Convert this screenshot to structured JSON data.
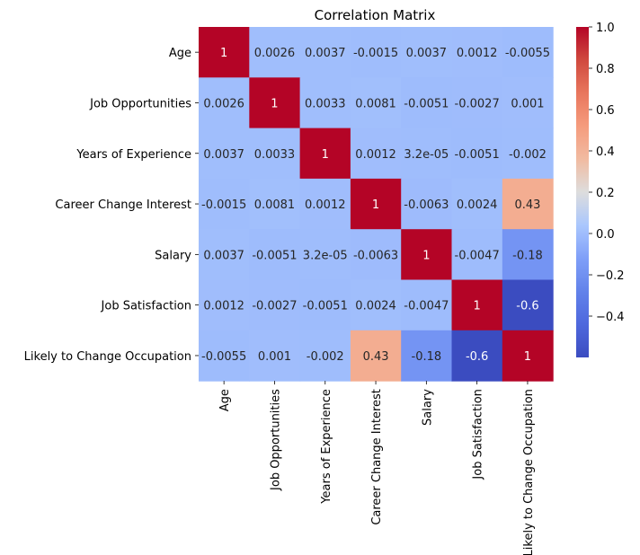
{
  "chart_data": {
    "type": "heatmap",
    "title": "Correlation Matrix",
    "variables": [
      "Age",
      "Job Opportunities",
      "Years of Experience",
      "Career Change Interest",
      "Salary",
      "Job Satisfaction",
      "Likely to Change Occupation"
    ],
    "values": [
      [
        1,
        0.0026,
        0.0037,
        -0.0015,
        0.0037,
        0.0012,
        -0.0055
      ],
      [
        0.0026,
        1,
        0.0033,
        0.0081,
        -0.0051,
        -0.0027,
        0.001
      ],
      [
        0.0037,
        0.0033,
        1,
        0.0012,
        3.2e-05,
        -0.0051,
        -0.002
      ],
      [
        -0.0015,
        0.0081,
        0.0012,
        1,
        -0.0063,
        0.0024,
        0.43
      ],
      [
        0.0037,
        -0.0051,
        3.2e-05,
        -0.0063,
        1,
        -0.0047,
        -0.18
      ],
      [
        0.0012,
        -0.0027,
        -0.0051,
        0.0024,
        -0.0047,
        1,
        -0.6
      ],
      [
        -0.0055,
        0.001,
        -0.002,
        0.43,
        -0.18,
        -0.6,
        1
      ]
    ],
    "annotations": [
      [
        "1",
        "0.0026",
        "0.0037",
        "-0.0015",
        "0.0037",
        "0.0012",
        "-0.0055"
      ],
      [
        "0.0026",
        "1",
        "0.0033",
        "0.0081",
        "-0.0051",
        "-0.0027",
        "0.001"
      ],
      [
        "0.0037",
        "0.0033",
        "1",
        "0.0012",
        "3.2e-05",
        "-0.0051",
        "-0.002"
      ],
      [
        "-0.0015",
        "0.0081",
        "0.0012",
        "1",
        "-0.0063",
        "0.0024",
        "0.43"
      ],
      [
        "0.0037",
        "-0.0051",
        "3.2e-05",
        "-0.0063",
        "1",
        "-0.0047",
        "-0.18"
      ],
      [
        "0.0012",
        "-0.0027",
        "-0.0051",
        "0.0024",
        "-0.0047",
        "1",
        "-0.6"
      ],
      [
        "-0.0055",
        "0.001",
        "-0.002",
        "0.43",
        "-0.18",
        "-0.6",
        "1"
      ]
    ],
    "colormap": "coolwarm",
    "colorbar": {
      "range": [
        -0.6,
        1.0
      ],
      "ticks": [
        -0.4,
        -0.2,
        0.0,
        0.2,
        0.4,
        0.6,
        0.8,
        1.0
      ],
      "tick_labels": [
        "−0.4",
        "−0.2",
        "0.0",
        "0.2",
        "0.4",
        "0.6",
        "0.8",
        "1.0"
      ]
    },
    "grid": false,
    "colors": {
      "low": "#3b4cc0",
      "mid": "#dddddd",
      "high": "#b40426"
    }
  }
}
